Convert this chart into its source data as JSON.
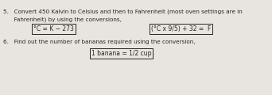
{
  "background_color": "#e8e4df",
  "text_color": "#2a2520",
  "fs_main": 5.2,
  "fs_formula": 5.5,
  "line1": "5.   Convert 450 Kalvin to Celsius and then to Fahrenheit (most oven settings are in",
  "line2": "      Fahrenheit) by using the conversions,",
  "formula1": "°C = K − 273",
  "formula2": "°C x 9/5) + 32 =  F",
  "line3": "6.   Find out the number of bananas required using the conversion,",
  "formula3": "1 banana = 1/2 cup"
}
